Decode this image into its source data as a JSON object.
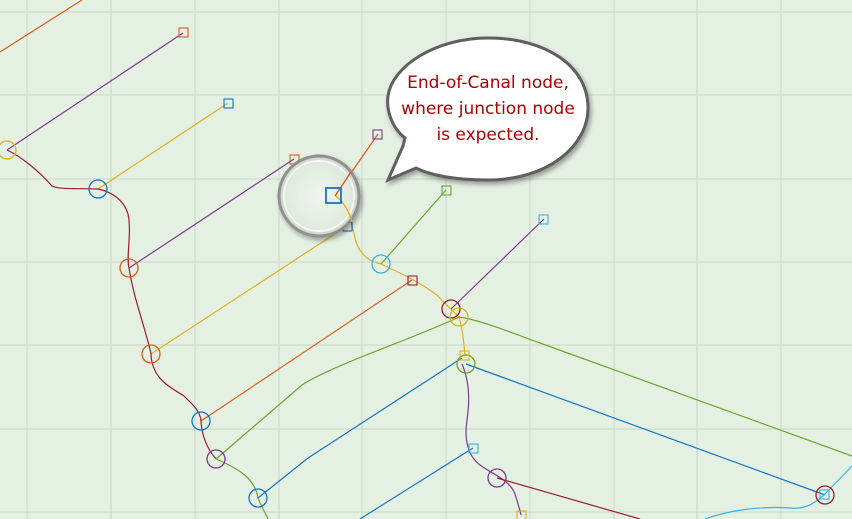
{
  "callout": {
    "lines": [
      "End-of-Canal node,",
      "where junction node",
      "is expected."
    ]
  },
  "colors": {
    "background": "#e4f0e2",
    "grid": "#c8d8c6",
    "red": "#e05a1a",
    "purple": "#7b3a8f",
    "yellow": "#e2b01e",
    "green": "#6aa72e",
    "blue": "#1673c8",
    "lightblue": "#3db2e6",
    "darkred": "#9c1f2f",
    "callout_text": "#b00000",
    "callout_border": "#5e5e5e"
  }
}
